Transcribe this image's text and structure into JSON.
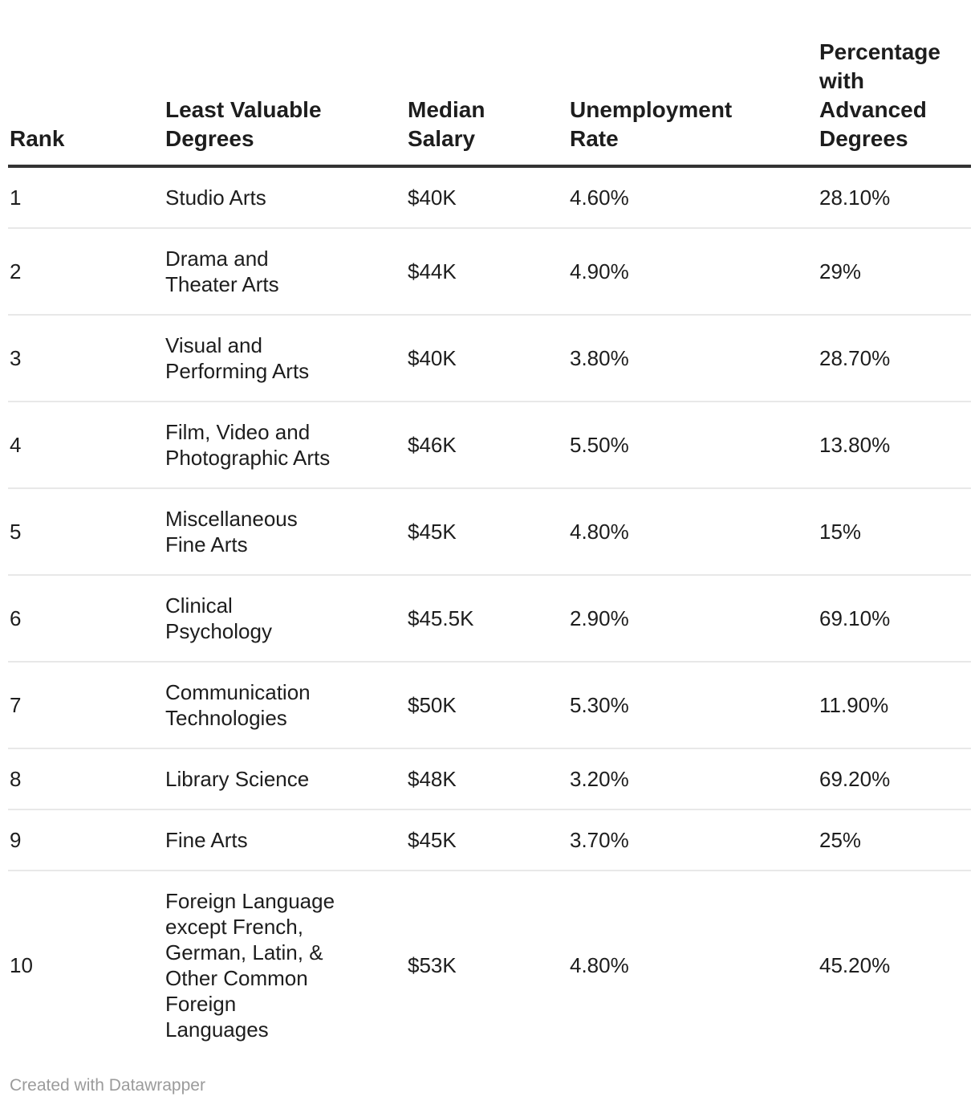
{
  "chart_data": {
    "type": "table",
    "columns": [
      "Rank",
      "Least Valuable\nDegrees",
      "Median\nSalary",
      "Unemployment\nRate",
      "Percentage\nwith\nAdvanced\nDegrees"
    ],
    "rows": [
      {
        "rank": "1",
        "degree": "Studio Arts",
        "salary": "$40K",
        "unemployment": "4.60%",
        "advanced": "28.10%"
      },
      {
        "rank": "2",
        "degree": "Drama and\nTheater Arts",
        "salary": "$44K",
        "unemployment": "4.90%",
        "advanced": "29%"
      },
      {
        "rank": "3",
        "degree": "Visual and\nPerforming Arts",
        "salary": "$40K",
        "unemployment": "3.80%",
        "advanced": "28.70%"
      },
      {
        "rank": "4",
        "degree": "Film, Video and\nPhotographic Arts",
        "salary": "$46K",
        "unemployment": "5.50%",
        "advanced": "13.80%"
      },
      {
        "rank": "5",
        "degree": "Miscellaneous\nFine Arts",
        "salary": "$45K",
        "unemployment": "4.80%",
        "advanced": "15%"
      },
      {
        "rank": "6",
        "degree": "Clinical\nPsychology",
        "salary": "$45.5K",
        "unemployment": "2.90%",
        "advanced": "69.10%"
      },
      {
        "rank": "7",
        "degree": "Communication\nTechnologies",
        "salary": "$50K",
        "unemployment": "5.30%",
        "advanced": "11.90%"
      },
      {
        "rank": "8",
        "degree": "Library Science",
        "salary": "$48K",
        "unemployment": "3.20%",
        "advanced": "69.20%"
      },
      {
        "rank": "9",
        "degree": "Fine Arts",
        "salary": "$45K",
        "unemployment": "3.70%",
        "advanced": "25%"
      },
      {
        "rank": "10",
        "degree": "Foreign Language\nexcept French,\nGerman, Latin, &\nOther Common\nForeign\nLanguages",
        "salary": "$53K",
        "unemployment": "4.80%",
        "advanced": "45.20%"
      }
    ]
  },
  "footer": {
    "credit": "Created with Datawrapper"
  },
  "colors": {
    "text": "#1d1d1d",
    "header_border": "#333333",
    "row_separator": "#e8e8e8",
    "footer_text": "#9b9b9b",
    "background": "#ffffff"
  }
}
